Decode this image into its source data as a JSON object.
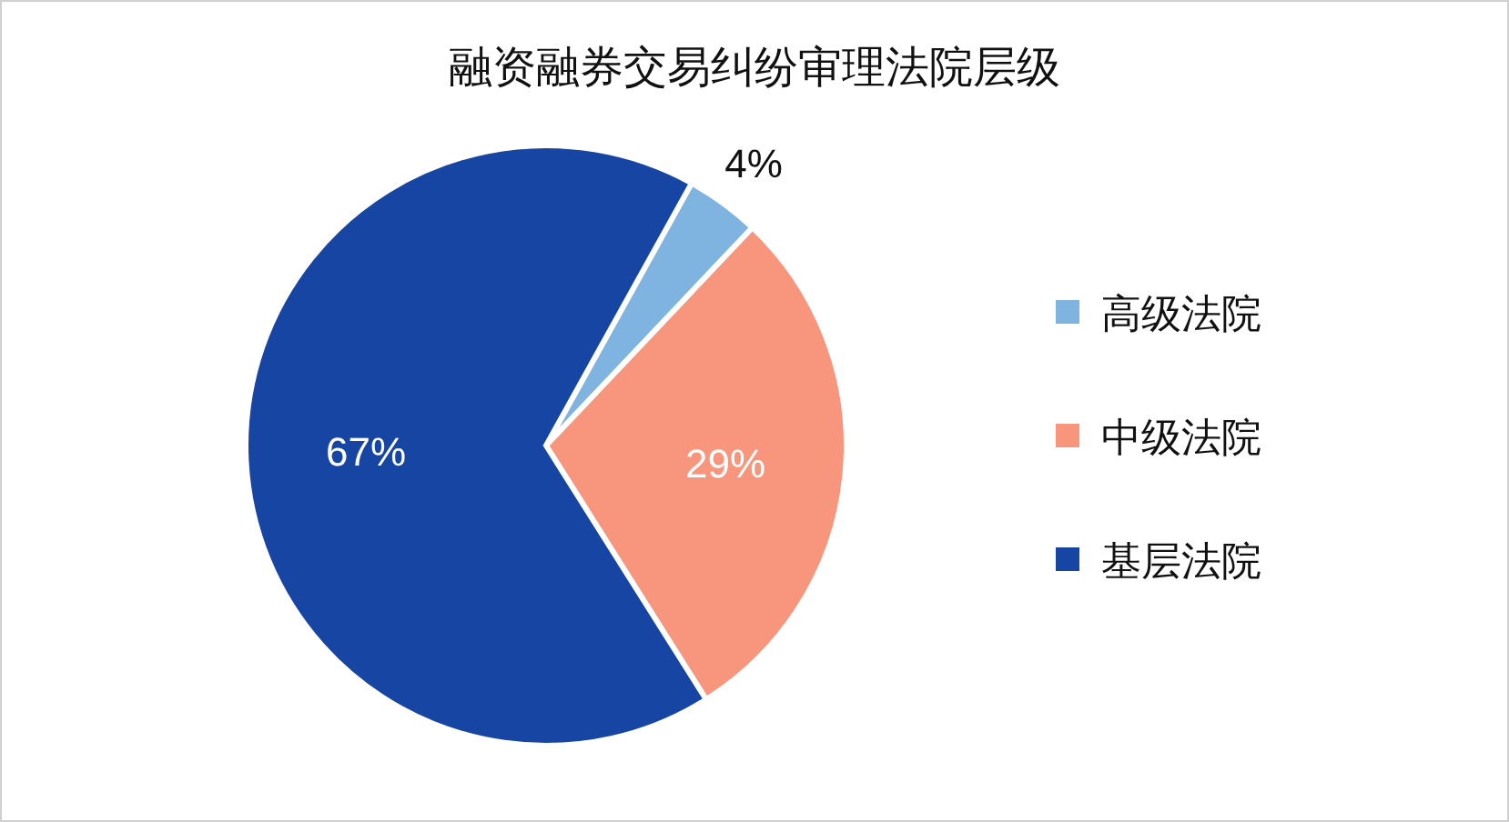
{
  "chart_data": {
    "type": "pie",
    "title": "融资融券交易纠纷审理法院层级",
    "categories": [
      "高级法院",
      "中级法院",
      "基层法院"
    ],
    "values": [
      4,
      29,
      67
    ],
    "colors": [
      "#7fb3e0",
      "#f7967d",
      "#1645a3"
    ],
    "value_labels": [
      "4%",
      "29%",
      "67%"
    ],
    "legend": "right"
  }
}
